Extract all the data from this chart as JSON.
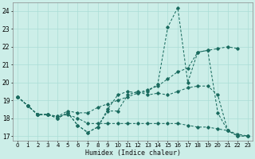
{
  "xlabel": "Humidex (Indice chaleur)",
  "xlim": [
    -0.5,
    23.5
  ],
  "ylim": [
    16.75,
    24.5
  ],
  "yticks": [
    17,
    18,
    19,
    20,
    21,
    22,
    23,
    24
  ],
  "bg_color": "#cceee8",
  "grid_color": "#aaddd6",
  "line_color": "#1a6b5f",
  "line1": [
    19.2,
    18.7,
    18.2,
    18.2,
    18.0,
    18.3,
    17.6,
    17.2,
    17.5,
    18.5,
    19.3,
    19.5,
    19.4,
    19.5,
    19.9,
    23.1,
    24.2,
    20.0,
    21.7,
    21.8,
    18.3,
    17.3,
    17.0,
    17.0
  ],
  "line2": [
    19.2,
    18.7,
    18.2,
    18.2,
    18.0,
    18.3,
    17.6,
    17.2,
    17.5,
    18.4,
    18.4,
    19.3,
    19.5,
    19.3,
    19.4,
    19.3,
    19.5,
    19.7,
    19.8,
    19.8,
    19.3,
    17.3,
    17.0,
    17.0
  ],
  "line3": [
    19.2,
    18.7,
    18.2,
    18.2,
    18.1,
    18.4,
    18.3,
    18.3,
    18.6,
    18.8,
    19.0,
    19.2,
    19.4,
    19.6,
    19.8,
    20.2,
    20.6,
    20.8,
    21.7,
    21.8,
    21.9,
    22.0,
    21.9,
    null
  ],
  "line4": [
    19.2,
    18.7,
    18.2,
    18.2,
    18.1,
    18.2,
    18.0,
    17.7,
    17.7,
    17.7,
    17.7,
    17.7,
    17.7,
    17.7,
    17.7,
    17.7,
    17.7,
    17.6,
    17.5,
    17.5,
    17.4,
    17.3,
    17.1,
    17.0
  ]
}
